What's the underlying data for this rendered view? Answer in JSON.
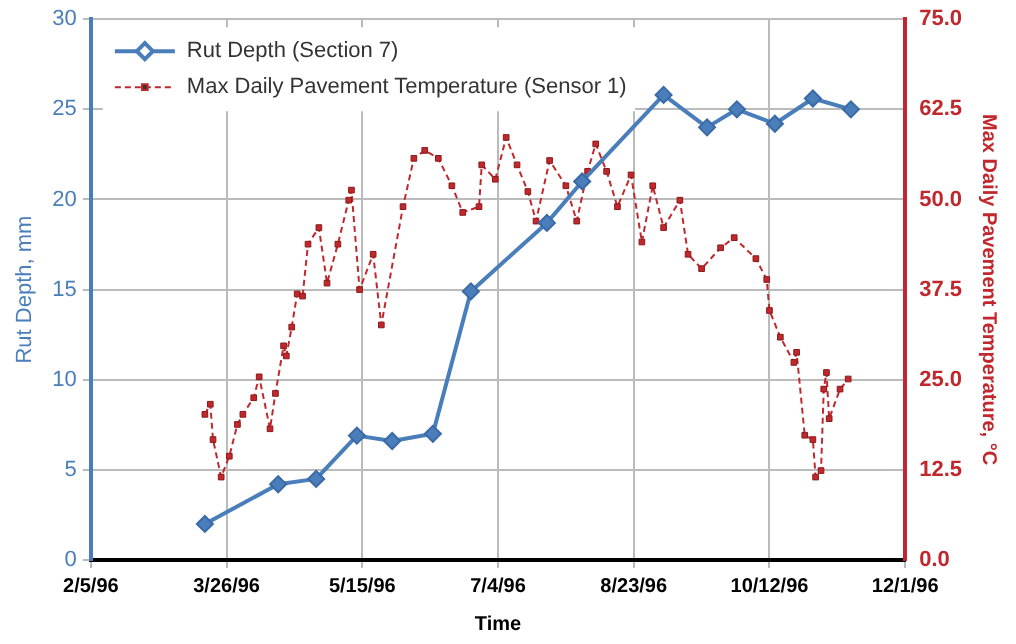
{
  "chart_data": {
    "type": "line",
    "xlabel": "Time",
    "ylabel": "Rut Depth, mm",
    "y2label": "Max Daily Pavement Temperature, °C",
    "xlim": [
      "1996-02-05",
      "1996-12-01"
    ],
    "xticks": [
      {
        "value": "1996-02-05",
        "label": "2/5/96"
      },
      {
        "value": "1996-03-26",
        "label": "3/26/96"
      },
      {
        "value": "1996-05-15",
        "label": "5/15/96"
      },
      {
        "value": "1996-07-04",
        "label": "7/4/96"
      },
      {
        "value": "1996-08-23",
        "label": "8/23/96"
      },
      {
        "value": "1996-10-12",
        "label": "10/12/96"
      },
      {
        "value": "1996-12-01",
        "label": "12/1/96"
      }
    ],
    "ylim": [
      0,
      30
    ],
    "yticks": [
      0,
      5,
      10,
      15,
      20,
      25,
      30
    ],
    "y2lim": [
      0,
      75
    ],
    "y2ticks": [
      {
        "value": 0,
        "label": "0.0"
      },
      {
        "value": 12.5,
        "label": "12.5"
      },
      {
        "value": 25,
        "label": "25.0"
      },
      {
        "value": 37.5,
        "label": "37.5"
      },
      {
        "value": 50,
        "label": "50.0"
      },
      {
        "value": 62.5,
        "label": "62.5"
      },
      {
        "value": 75,
        "label": "75.0"
      }
    ],
    "grid": true,
    "legend": "top left",
    "series": [
      {
        "name": "Rut Depth (Section 7)",
        "color": "#4a7ebb",
        "marker": "diamond",
        "line_style": "solid",
        "x": [
          "1996-03-18",
          "1996-04-14",
          "1996-04-28",
          "1996-05-13",
          "1996-05-26",
          "1996-06-10",
          "1996-06-24",
          "1996-07-22",
          "1996-08-04",
          "1996-09-03",
          "1996-09-19",
          "1996-09-30",
          "1996-10-14",
          "1996-10-28",
          "1996-11-11"
        ],
        "values": [
          2.0,
          4.2,
          4.5,
          6.9,
          6.6,
          7.0,
          14.9,
          18.7,
          21.0,
          25.8,
          24.0,
          25.0,
          24.2,
          25.6,
          25.0
        ]
      },
      {
        "name": "Max Daily Pavement Temperature (Sensor 1)",
        "color": "#c0282d",
        "marker": "square",
        "line_style": "dashed",
        "axis": "y2",
        "x": [
          "1996-03-18",
          "1996-03-20",
          "1996-03-21",
          "1996-03-24",
          "1996-03-27",
          "1996-03-30",
          "1996-04-01",
          "1996-04-05",
          "1996-04-07",
          "1996-04-11",
          "1996-04-13",
          "1996-04-16",
          "1996-04-17",
          "1996-04-19",
          "1996-04-21",
          "1996-04-23",
          "1996-04-25",
          "1996-04-29",
          "1996-05-02",
          "1996-05-06",
          "1996-05-10",
          "1996-05-11",
          "1996-05-14",
          "1996-05-19",
          "1996-05-22",
          "1996-05-30",
          "1996-06-03",
          "1996-06-07",
          "1996-06-12",
          "1996-06-17",
          "1996-06-21",
          "1996-06-27",
          "1996-06-28",
          "1996-07-03",
          "1996-07-07",
          "1996-07-11",
          "1996-07-15",
          "1996-07-18",
          "1996-07-23",
          "1996-07-29",
          "1996-08-02",
          "1996-08-06",
          "1996-08-09",
          "1996-08-13",
          "1996-08-17",
          "1996-08-22",
          "1996-08-26",
          "1996-08-30",
          "1996-09-03",
          "1996-09-09",
          "1996-09-12",
          "1996-09-17",
          "1996-09-24",
          "1996-09-29",
          "1996-10-07",
          "1996-10-11",
          "1996-10-12",
          "1996-10-16",
          "1996-10-21",
          "1996-10-22",
          "1996-10-25",
          "1996-10-28",
          "1996-10-29",
          "1996-10-31",
          "1996-11-01",
          "1996-11-02",
          "1996-11-03",
          "1996-11-07",
          "1996-11-10"
        ],
        "values": [
          20.2,
          21.6,
          16.7,
          11.5,
          14.4,
          18.8,
          20.2,
          22.5,
          25.4,
          18.2,
          23.1,
          29.7,
          28.3,
          32.3,
          36.9,
          36.6,
          43.8,
          46.1,
          38.4,
          43.8,
          49.9,
          51.3,
          37.5,
          42.4,
          32.6,
          49.0,
          55.7,
          56.8,
          55.7,
          51.9,
          48.2,
          49.0,
          54.8,
          52.8,
          58.6,
          54.8,
          51.1,
          47.0,
          55.4,
          51.9,
          47.0,
          53.9,
          57.7,
          53.9,
          49.0,
          53.4,
          44.1,
          51.9,
          46.1,
          49.9,
          42.4,
          40.4,
          43.3,
          44.7,
          41.8,
          38.9,
          34.6,
          30.9,
          27.4,
          28.8,
          17.3,
          16.7,
          11.5,
          12.4,
          23.7,
          26.0,
          19.6,
          23.7,
          25.1
        ]
      }
    ]
  }
}
